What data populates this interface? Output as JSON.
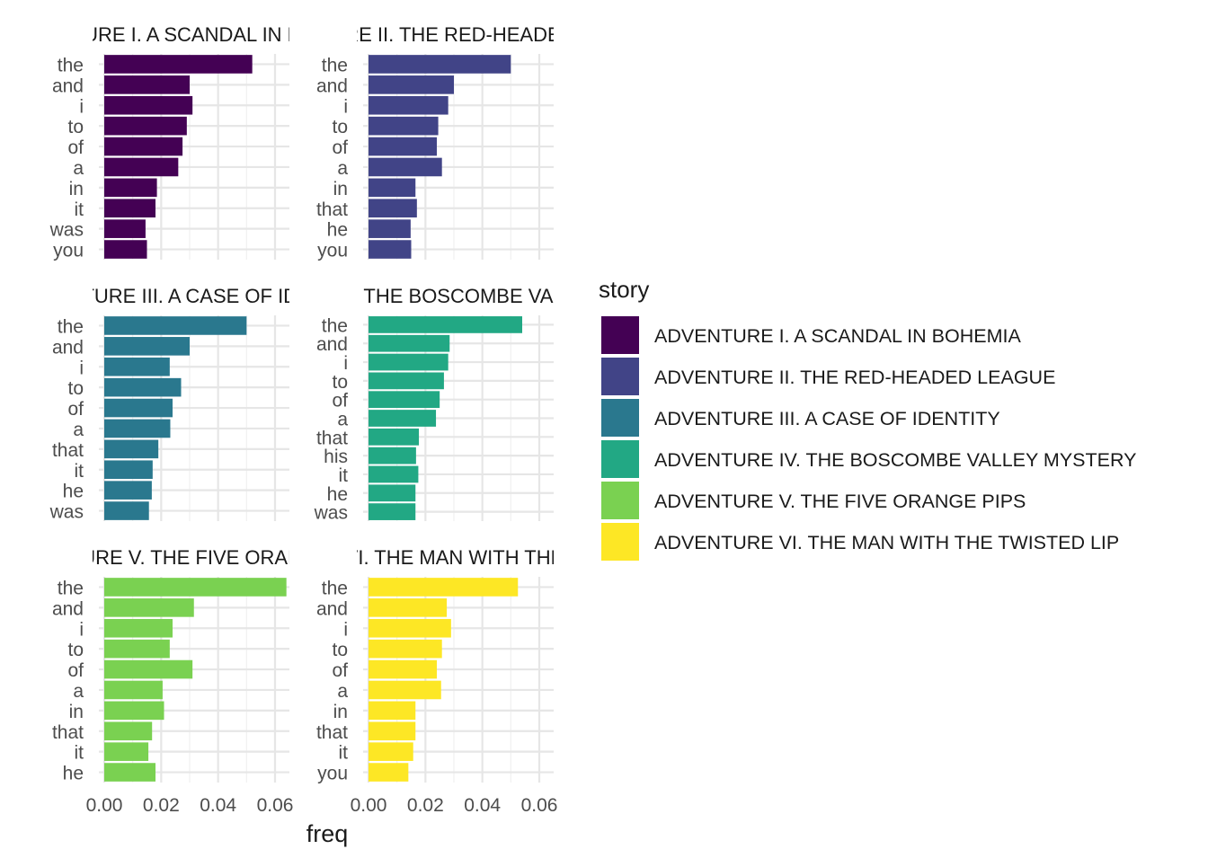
{
  "chart_data": {
    "type": "bar",
    "orientation": "horizontal",
    "facet_layout": "3 rows x 2 columns",
    "xlabel": "freq",
    "ylabel": "",
    "xlim": [
      0,
      0.067
    ],
    "x_ticks": [
      0,
      0.02,
      0.04,
      0.06
    ],
    "x_tick_labels": [
      "0.00",
      "0.02",
      "0.04",
      "0.06"
    ],
    "grid": true,
    "legend": {
      "title": "story",
      "position": "right",
      "entries": [
        {
          "label": "ADVENTURE I. A SCANDAL IN BOHEMIA",
          "color": "#440154"
        },
        {
          "label": "ADVENTURE II. THE RED-HEADED LEAGUE",
          "color": "#414487"
        },
        {
          "label": "ADVENTURE III. A CASE OF IDENTITY",
          "color": "#2A788E"
        },
        {
          "label": "ADVENTURE IV. THE BOSCOMBE VALLEY MYSTERY",
          "color": "#22A884"
        },
        {
          "label": "ADVENTURE V. THE FIVE ORANGE PIPS",
          "color": "#7AD151"
        },
        {
          "label": "ADVENTURE VI. THE MAN WITH THE TWISTED LIP",
          "color": "#FDE725"
        }
      ]
    },
    "panels": [
      {
        "title": "ADVENTURE I. A SCANDAL IN BOHEMIA",
        "color": "#440154",
        "categories": [
          "the",
          "and",
          "i",
          "to",
          "of",
          "a",
          "in",
          "it",
          "was",
          "you"
        ],
        "values": [
          0.052,
          0.03,
          0.031,
          0.029,
          0.0275,
          0.026,
          0.0185,
          0.018,
          0.0145,
          0.015
        ]
      },
      {
        "title": "ADVENTURE II. THE RED-HEADED LEAGUE",
        "color": "#414487",
        "categories": [
          "the",
          "and",
          "i",
          "to",
          "of",
          "a",
          "in",
          "that",
          "he",
          "you"
        ],
        "values": [
          0.05,
          0.03,
          0.028,
          0.0245,
          0.024,
          0.0258,
          0.0165,
          0.017,
          0.0148,
          0.015
        ]
      },
      {
        "title": "ADVENTURE III. A CASE OF IDENTITY",
        "color": "#2A788E",
        "categories": [
          "the",
          "and",
          "i",
          "to",
          "of",
          "a",
          "that",
          "it",
          "he",
          "was"
        ],
        "values": [
          0.05,
          0.03,
          0.023,
          0.027,
          0.024,
          0.0232,
          0.019,
          0.017,
          0.0167,
          0.0157
        ]
      },
      {
        "title": "ADVENTURE IV. THE BOSCOMBE VALLEY MYSTERY",
        "color": "#22A884",
        "categories": [
          "the",
          "and",
          "i",
          "to",
          "of",
          "a",
          "that",
          "his",
          "it",
          "he",
          "was"
        ],
        "values": [
          0.054,
          0.0285,
          0.028,
          0.0265,
          0.025,
          0.0237,
          0.0177,
          0.0167,
          0.0175,
          0.0165,
          0.0165
        ]
      },
      {
        "title": "ADVENTURE V. THE FIVE ORANGE PIPS",
        "color": "#7AD151",
        "categories": [
          "the",
          "and",
          "i",
          "to",
          "of",
          "a",
          "in",
          "that",
          "it",
          "he"
        ],
        "values": [
          0.064,
          0.0315,
          0.024,
          0.023,
          0.031,
          0.0205,
          0.021,
          0.0168,
          0.0155,
          0.018
        ]
      },
      {
        "title": "ADVENTURE VI. THE MAN WITH THE TWISTED LIP",
        "color": "#FDE725",
        "categories": [
          "the",
          "and",
          "i",
          "to",
          "of",
          "a",
          "in",
          "that",
          "it",
          "you"
        ],
        "values": [
          0.0525,
          0.0275,
          0.029,
          0.0258,
          0.024,
          0.0255,
          0.0165,
          0.0165,
          0.0157,
          0.014
        ]
      }
    ]
  }
}
